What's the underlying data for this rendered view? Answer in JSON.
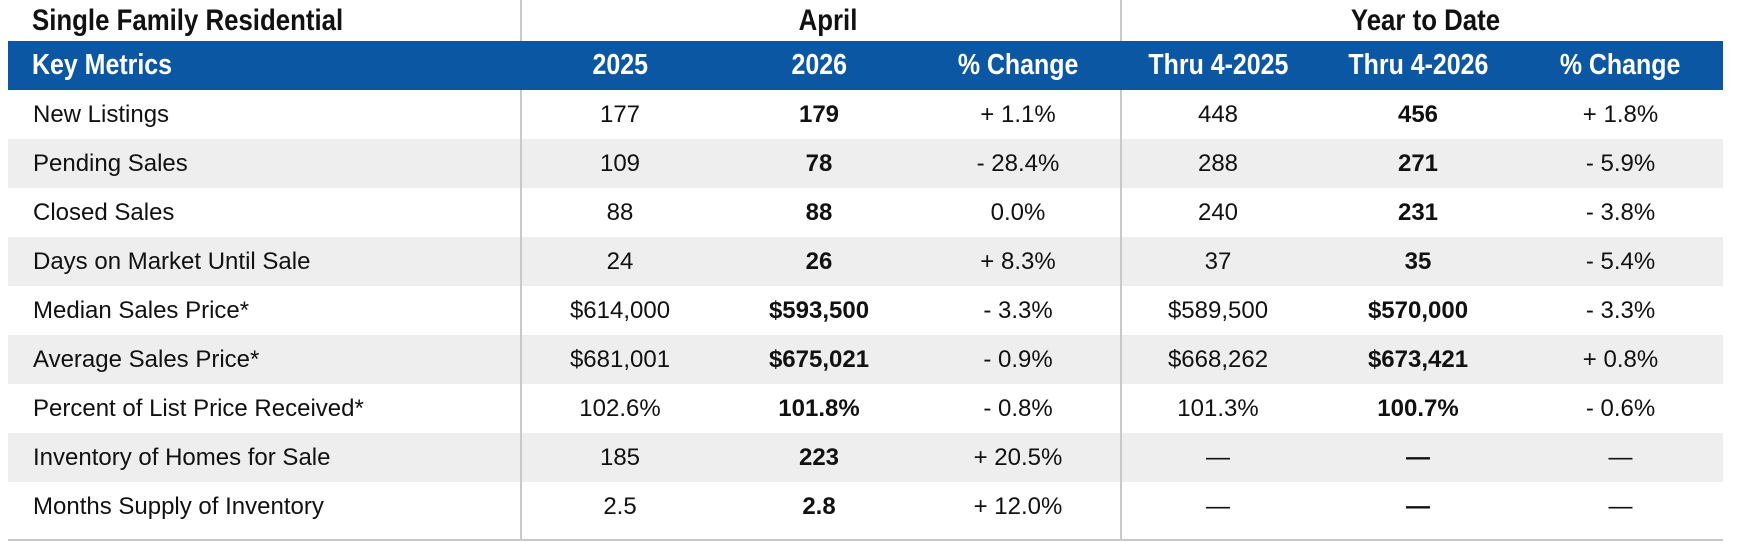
{
  "title": "Single Family Residential",
  "groups": {
    "april": "April",
    "ytd": "Year to Date"
  },
  "header": {
    "metrics": "Key Metrics",
    "col1": "2025",
    "col2": "2026",
    "col3": "% Change",
    "col4": "Thru 4-2025",
    "col5": "Thru 4-2026",
    "col6": "% Change"
  },
  "rows": [
    {
      "label": "New Listings",
      "v2025": "177",
      "v2026": "179",
      "chg": "+ 1.1%",
      "ytd2025": "448",
      "ytd2026": "456",
      "ytdchg": "+ 1.8%"
    },
    {
      "label": "Pending Sales",
      "v2025": "109",
      "v2026": "78",
      "chg": "- 28.4%",
      "ytd2025": "288",
      "ytd2026": "271",
      "ytdchg": "- 5.9%"
    },
    {
      "label": "Closed Sales",
      "v2025": "88",
      "v2026": "88",
      "chg": "0.0%",
      "ytd2025": "240",
      "ytd2026": "231",
      "ytdchg": "- 3.8%"
    },
    {
      "label": "Days on Market Until Sale",
      "v2025": "24",
      "v2026": "26",
      "chg": "+ 8.3%",
      "ytd2025": "37",
      "ytd2026": "35",
      "ytdchg": "- 5.4%"
    },
    {
      "label": "Median Sales Price*",
      "v2025": "$614,000",
      "v2026": "$593,500",
      "chg": "- 3.3%",
      "ytd2025": "$589,500",
      "ytd2026": "$570,000",
      "ytdchg": "- 3.3%"
    },
    {
      "label": "Average Sales Price*",
      "v2025": "$681,001",
      "v2026": "$675,021",
      "chg": "- 0.9%",
      "ytd2025": "$668,262",
      "ytd2026": "$673,421",
      "ytdchg": "+ 0.8%"
    },
    {
      "label": "Percent of List Price Received*",
      "v2025": "102.6%",
      "v2026": "101.8%",
      "chg": "- 0.8%",
      "ytd2025": "101.3%",
      "ytd2026": "100.7%",
      "ytdchg": "- 0.6%"
    },
    {
      "label": "Inventory of Homes for Sale",
      "v2025": "185",
      "v2026": "223",
      "chg": "+ 20.5%",
      "ytd2025": "—",
      "ytd2026": "—",
      "ytdchg": "—"
    },
    {
      "label": "Months Supply of Inventory",
      "v2025": "2.5",
      "v2026": "2.8",
      "chg": "+ 12.0%",
      "ytd2025": "—",
      "ytd2026": "—",
      "ytdchg": "—"
    }
  ]
}
